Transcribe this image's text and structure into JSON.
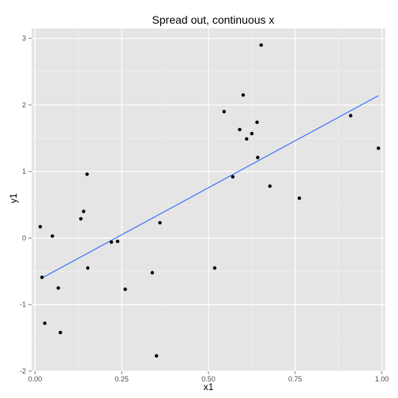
{
  "chart_data": {
    "type": "scatter",
    "title": "Spread out, continuous x",
    "xlabel": "x1",
    "ylabel": "y1",
    "xlim": [
      -0.01,
      1.01
    ],
    "ylim": [
      -2.0,
      3.15
    ],
    "x_ticks": [
      0.0,
      0.25,
      0.5,
      0.75,
      1.0
    ],
    "x_tick_labels": [
      "0.00",
      "0.25",
      "0.50",
      "0.75",
      "1.00"
    ],
    "y_ticks": [
      -2,
      -1,
      0,
      1,
      2,
      3
    ],
    "y_tick_labels": [
      "-2",
      "-1",
      "0",
      "1",
      "2",
      "3"
    ],
    "grid": true,
    "background_color": "#e5e5e5",
    "grid_color": "#ffffff",
    "point_color": "#000000",
    "line_color": "#3366ff",
    "points": [
      {
        "x": 0.015,
        "y": 0.17
      },
      {
        "x": 0.02,
        "y": -0.59
      },
      {
        "x": 0.028,
        "y": -1.28
      },
      {
        "x": 0.05,
        "y": 0.03
      },
      {
        "x": 0.067,
        "y": -0.75
      },
      {
        "x": 0.073,
        "y": -1.42
      },
      {
        "x": 0.132,
        "y": 0.29
      },
      {
        "x": 0.14,
        "y": 0.4
      },
      {
        "x": 0.15,
        "y": 0.96
      },
      {
        "x": 0.152,
        "y": -0.45
      },
      {
        "x": 0.22,
        "y": -0.06
      },
      {
        "x": 0.238,
        "y": -0.05
      },
      {
        "x": 0.26,
        "y": -0.77
      },
      {
        "x": 0.338,
        "y": -0.52
      },
      {
        "x": 0.35,
        "y": -1.77
      },
      {
        "x": 0.36,
        "y": 0.23
      },
      {
        "x": 0.518,
        "y": -0.45
      },
      {
        "x": 0.545,
        "y": 1.9
      },
      {
        "x": 0.57,
        "y": 0.92
      },
      {
        "x": 0.59,
        "y": 1.63
      },
      {
        "x": 0.6,
        "y": 2.15
      },
      {
        "x": 0.61,
        "y": 1.49
      },
      {
        "x": 0.625,
        "y": 1.57
      },
      {
        "x": 0.64,
        "y": 1.74
      },
      {
        "x": 0.642,
        "y": 1.21
      },
      {
        "x": 0.652,
        "y": 2.9
      },
      {
        "x": 0.677,
        "y": 0.78
      },
      {
        "x": 0.762,
        "y": 0.6
      },
      {
        "x": 0.91,
        "y": 1.84
      },
      {
        "x": 0.99,
        "y": 1.35
      }
    ],
    "fit_line": {
      "x": [
        0.02,
        0.99
      ],
      "y": [
        -0.6,
        2.14
      ]
    }
  }
}
